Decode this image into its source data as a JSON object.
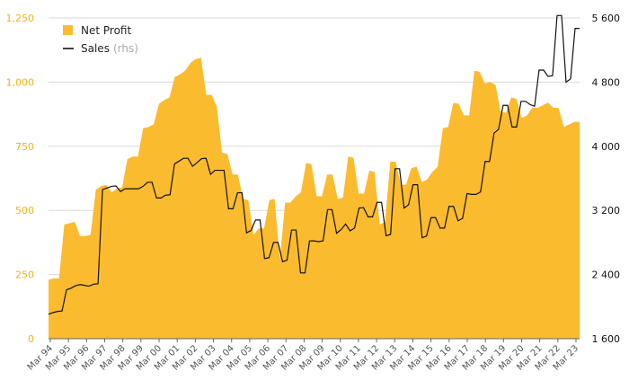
{
  "chart_data": {
    "type": "area",
    "x_labels": [
      "Mar 94",
      "Mar 95",
      "Mar 96",
      "Mar 97",
      "Mar 98",
      "Mar 99",
      "Mar 00",
      "Mar 01",
      "Mar 02",
      "Mar 03",
      "Mar 04",
      "Mar 05",
      "Mar 06",
      "Mar 07",
      "Mar 08",
      "Mar 09",
      "Mar 10",
      "Mar 11",
      "Mar 12",
      "Mar 13",
      "Mar 14",
      "Mar 15",
      "Mar 16",
      "Mar 17",
      "Mar 18",
      "Mar 19",
      "Mar 20",
      "Mar 21",
      "Mar 22",
      "Mar 23"
    ],
    "y_left": {
      "ticks": [
        "0",
        "250",
        "500",
        "750",
        "1,000",
        "1,250"
      ],
      "min": 0,
      "max": 1250
    },
    "y_right": {
      "ticks": [
        "1 600",
        "2 400",
        "3 200",
        "4 000",
        "4 800",
        "5 600"
      ],
      "min": 1600,
      "max": 5600
    },
    "grid": true,
    "legend": {
      "position": "top-left",
      "items": [
        {
          "label": "Net Profit",
          "sub": "",
          "color": "#fbbb2e",
          "style": "swatch"
        },
        {
          "label": "Sales",
          "sub": "(rhs)",
          "color": "#111111",
          "style": "line"
        }
      ]
    },
    "series": [
      {
        "name": "Net Profit",
        "axis": "left",
        "color": "#fbbb2e",
        "values": [
          230,
          235,
          235,
          445,
          450,
          455,
          400,
          400,
          405,
          580,
          595,
          600,
          570,
          585,
          590,
          700,
          710,
          710,
          820,
          825,
          835,
          915,
          930,
          940,
          1020,
          1030,
          1045,
          1075,
          1090,
          1095,
          950,
          950,
          905,
          725,
          720,
          640,
          640,
          545,
          540,
          405,
          430,
          430,
          540,
          545,
          310,
          530,
          530,
          555,
          570,
          685,
          680,
          555,
          555,
          640,
          640,
          545,
          550,
          710,
          705,
          565,
          565,
          655,
          650,
          445,
          455,
          690,
          690,
          600,
          600,
          665,
          670,
          610,
          620,
          650,
          670,
          820,
          825,
          920,
          915,
          870,
          870,
          1045,
          1040,
          995,
          1000,
          990,
          885,
          880,
          940,
          935,
          860,
          870,
          900,
          900,
          910,
          920,
          900,
          900,
          825,
          835,
          845,
          845
        ]
      },
      {
        "name": "Sales",
        "axis": "right",
        "values": [
          1905,
          1925,
          1940,
          1945,
          2210,
          2230,
          2260,
          2275,
          2265,
          2255,
          2280,
          2285,
          3460,
          3480,
          3500,
          3505,
          3435,
          3470,
          3470,
          3470,
          3470,
          3500,
          3550,
          3550,
          3355,
          3355,
          3390,
          3395,
          3780,
          3815,
          3850,
          3850,
          3750,
          3795,
          3845,
          3850,
          3650,
          3700,
          3700,
          3700,
          3220,
          3220,
          3420,
          3420,
          2920,
          2950,
          3080,
          3080,
          2600,
          2610,
          2800,
          2800,
          2560,
          2580,
          2955,
          2955,
          2420,
          2420,
          2820,
          2820,
          2810,
          2820,
          3210,
          3210,
          2915,
          2960,
          3030,
          2945,
          2980,
          3230,
          3235,
          3120,
          3120,
          3300,
          3300,
          2885,
          2900,
          3720,
          3720,
          3230,
          3270,
          3520,
          3520,
          2860,
          2880,
          3110,
          3110,
          2980,
          2980,
          3250,
          3250,
          3070,
          3100,
          3410,
          3400,
          3400,
          3430,
          3810,
          3810,
          4165,
          4210,
          4510,
          4510,
          4240,
          4240,
          4560,
          4560,
          4520,
          4500,
          4950,
          4950,
          4870,
          4880,
          5630,
          5630,
          4800,
          4840,
          5470,
          5470
        ]
      }
    ]
  }
}
